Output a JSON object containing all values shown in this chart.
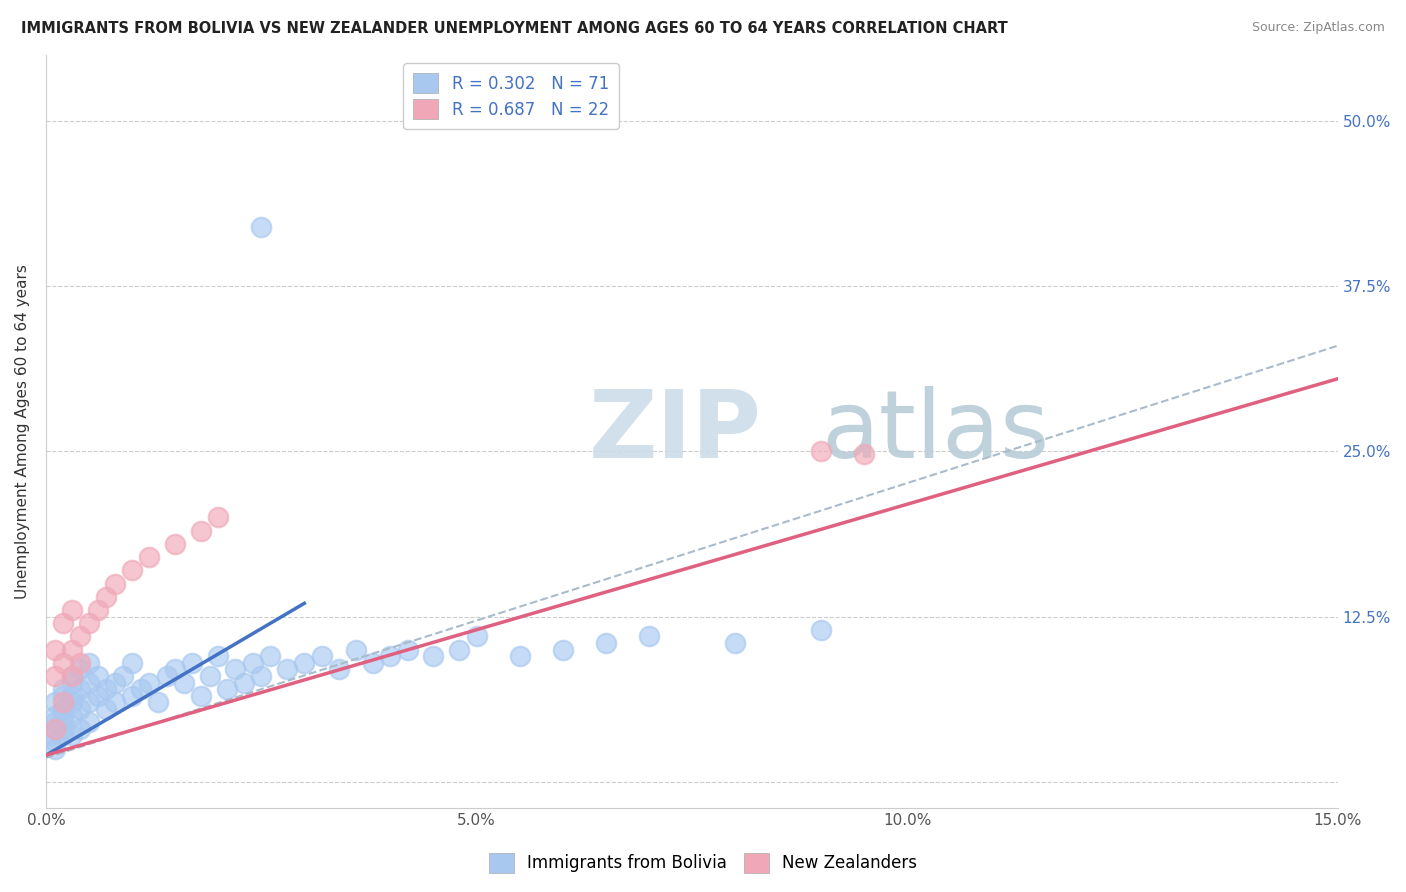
{
  "title": "IMMIGRANTS FROM BOLIVIA VS NEW ZEALANDER UNEMPLOYMENT AMONG AGES 60 TO 64 YEARS CORRELATION CHART",
  "source": "Source: ZipAtlas.com",
  "ylabel": "Unemployment Among Ages 60 to 64 years",
  "xlim": [
    0.0,
    0.15
  ],
  "ylim": [
    -0.02,
    0.55
  ],
  "xticks": [
    0.0,
    0.05,
    0.1,
    0.15
  ],
  "xtick_labels": [
    "0.0%",
    "5.0%",
    "10.0%",
    "15.0%"
  ],
  "yticks": [
    0.0,
    0.125,
    0.25,
    0.375,
    0.5
  ],
  "right_ytick_labels": [
    "",
    "12.5%",
    "25.0%",
    "37.5%",
    "50.0%"
  ],
  "bolivia_R": 0.302,
  "bolivia_N": 71,
  "nz_R": 0.687,
  "nz_N": 22,
  "bolivia_color": "#a8c8f0",
  "nz_color": "#f0a8b8",
  "bolivia_line_color": "#4472c4",
  "nz_line_color": "#e06080",
  "trend_line_color": "#aabbcc",
  "watermark_zip": "ZIP",
  "watermark_atlas": "atlas",
  "legend_bolivia": "Immigrants from Bolivia",
  "legend_nz": "New Zealanders",
  "bolivia_x": [
    0.0005,
    0.001,
    0.001,
    0.001,
    0.001,
    0.001,
    0.001,
    0.002,
    0.002,
    0.002,
    0.002,
    0.002,
    0.002,
    0.002,
    0.003,
    0.003,
    0.003,
    0.003,
    0.003,
    0.003,
    0.004,
    0.004,
    0.004,
    0.004,
    0.005,
    0.005,
    0.005,
    0.005,
    0.006,
    0.006,
    0.007,
    0.007,
    0.008,
    0.008,
    0.009,
    0.01,
    0.01,
    0.011,
    0.012,
    0.013,
    0.014,
    0.015,
    0.016,
    0.017,
    0.018,
    0.019,
    0.02,
    0.021,
    0.022,
    0.023,
    0.024,
    0.025,
    0.026,
    0.028,
    0.03,
    0.032,
    0.034,
    0.036,
    0.038,
    0.04,
    0.042,
    0.045,
    0.048,
    0.05,
    0.055,
    0.06,
    0.065,
    0.07,
    0.08,
    0.09,
    0.025
  ],
  "bolivia_y": [
    0.035,
    0.04,
    0.03,
    0.045,
    0.025,
    0.05,
    0.06,
    0.055,
    0.04,
    0.065,
    0.035,
    0.05,
    0.07,
    0.045,
    0.06,
    0.035,
    0.075,
    0.05,
    0.065,
    0.08,
    0.07,
    0.055,
    0.04,
    0.085,
    0.06,
    0.075,
    0.045,
    0.09,
    0.065,
    0.08,
    0.07,
    0.055,
    0.075,
    0.06,
    0.08,
    0.065,
    0.09,
    0.07,
    0.075,
    0.06,
    0.08,
    0.085,
    0.075,
    0.09,
    0.065,
    0.08,
    0.095,
    0.07,
    0.085,
    0.075,
    0.09,
    0.08,
    0.095,
    0.085,
    0.09,
    0.095,
    0.085,
    0.1,
    0.09,
    0.095,
    0.1,
    0.095,
    0.1,
    0.11,
    0.095,
    0.1,
    0.105,
    0.11,
    0.105,
    0.115,
    0.42
  ],
  "nz_x": [
    0.001,
    0.001,
    0.001,
    0.002,
    0.002,
    0.002,
    0.003,
    0.003,
    0.003,
    0.004,
    0.004,
    0.005,
    0.006,
    0.007,
    0.008,
    0.01,
    0.012,
    0.015,
    0.018,
    0.02,
    0.09,
    0.095
  ],
  "nz_y": [
    0.04,
    0.08,
    0.1,
    0.06,
    0.09,
    0.12,
    0.08,
    0.1,
    0.13,
    0.09,
    0.11,
    0.12,
    0.13,
    0.14,
    0.15,
    0.16,
    0.17,
    0.18,
    0.19,
    0.2,
    0.25,
    0.248
  ]
}
